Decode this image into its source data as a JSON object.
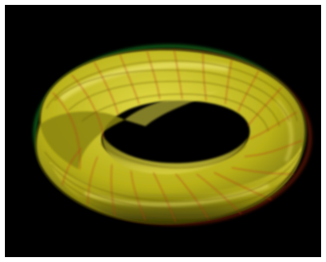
{
  "scene": {
    "subject": "mobius-band-anaglyph",
    "background_color": "#000000",
    "surface_color": "#c8c020",
    "highlight_color": "#e8e050",
    "shadow_color": "#4a4a08",
    "grid_line_color": "#b83818",
    "left_eye_fringe_color": "#d03010",
    "right_eye_fringe_color": "#20c030"
  }
}
